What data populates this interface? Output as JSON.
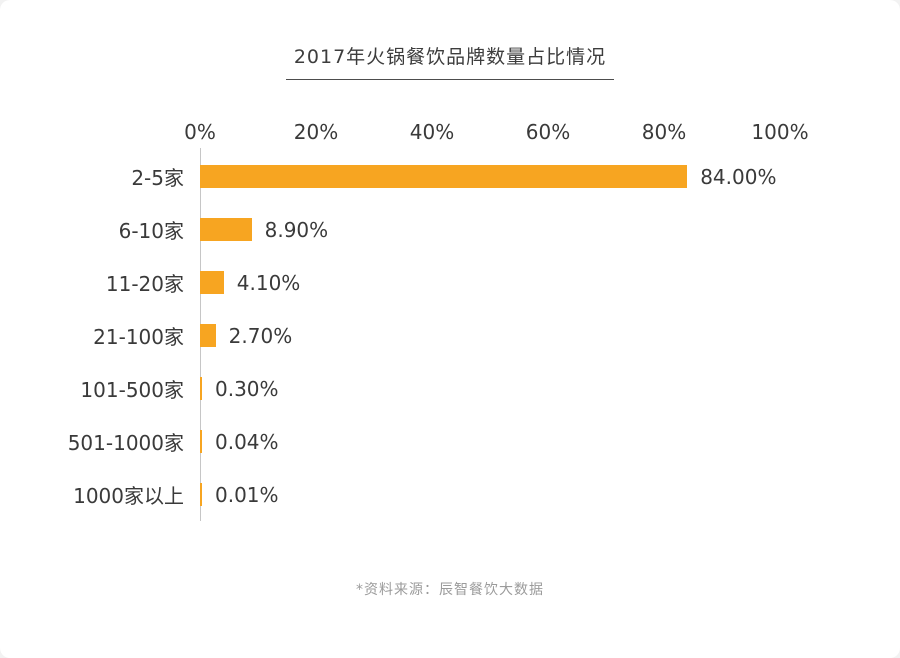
{
  "title": "2017年火锅餐饮品牌数量占比情况",
  "source_note": "*资料来源：辰智餐饮大数据",
  "colors": {
    "bar": "#F7A521",
    "axis_line": "#C6C6C6",
    "text": "#3A3A3A",
    "muted_text": "#9B9B9B",
    "background": "#FFFFFF"
  },
  "chart_data": {
    "type": "bar",
    "orientation": "horizontal",
    "title": "2017年火锅餐饮品牌数量占比情况",
    "categories": [
      "2-5家",
      "6-10家",
      "11-20家",
      "21-100家",
      "101-500家",
      "501-1000家",
      "1000家以上"
    ],
    "values": [
      84.0,
      8.9,
      4.1,
      2.7,
      0.3,
      0.04,
      0.01
    ],
    "value_labels": [
      "84.00%",
      "8.90%",
      "4.10%",
      "2.70%",
      "0.30%",
      "0.04%",
      "0.01%"
    ],
    "x_ticks": [
      "0%",
      "20%",
      "40%",
      "60%",
      "80%",
      "100%"
    ],
    "xlim": [
      0,
      100
    ],
    "xlabel": "",
    "ylabel": "",
    "grid": false,
    "legend": "none",
    "source": "*资料来源：辰智餐饮大数据"
  }
}
